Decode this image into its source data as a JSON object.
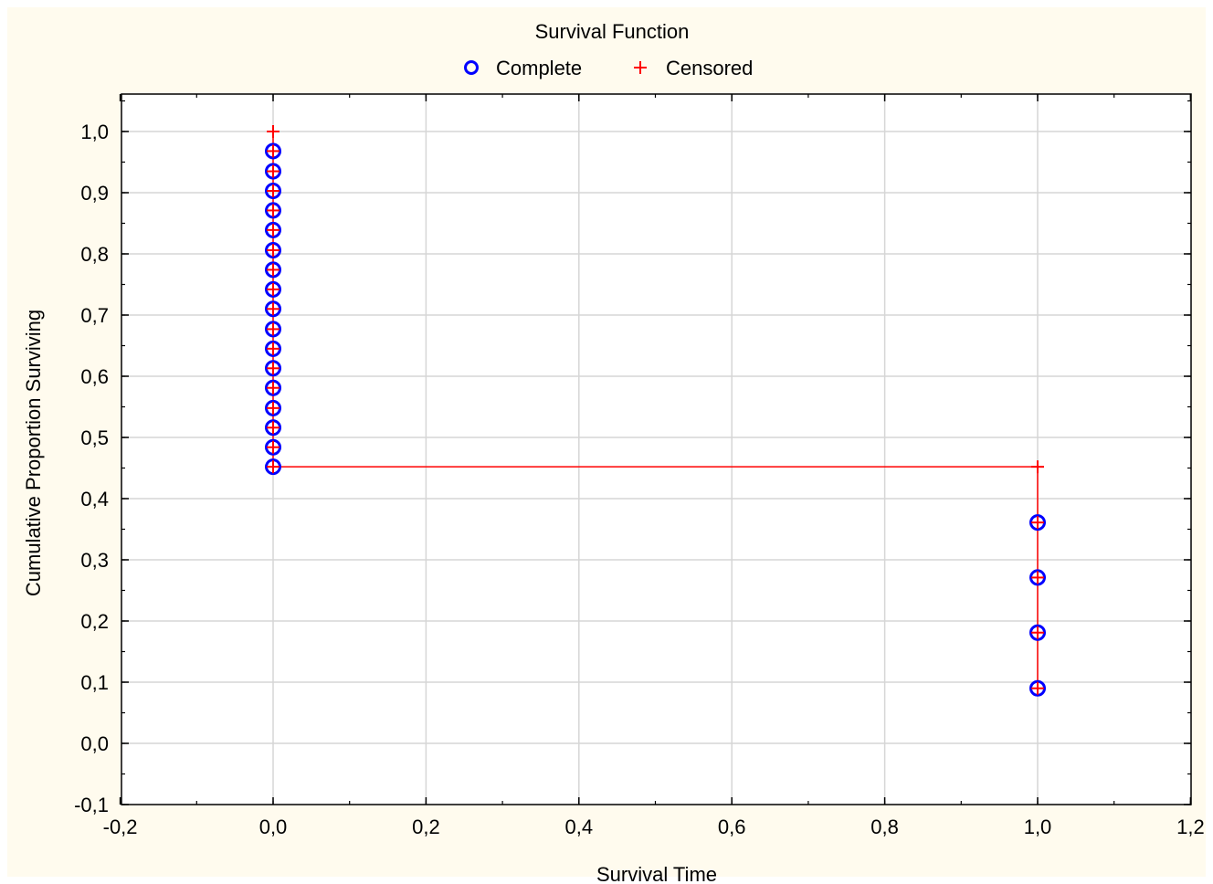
{
  "chart_data": {
    "type": "scatter",
    "title": "Survival Function",
    "xlabel": "Survival Time",
    "ylabel": "Cumulative Proportion Surviving",
    "xlim": [
      -0.2,
      1.2
    ],
    "ylim": [
      -0.1,
      1.05
    ],
    "x_ticks": [
      "-0,2",
      "0,0",
      "0,2",
      "0,4",
      "0,6",
      "0,8",
      "1,0",
      "1,2"
    ],
    "x_tick_values": [
      -0.2,
      0.0,
      0.2,
      0.4,
      0.6,
      0.8,
      1.0,
      1.2
    ],
    "y_ticks": [
      "-0,1",
      "0,0",
      "0,1",
      "0,2",
      "0,3",
      "0,4",
      "0,5",
      "0,6",
      "0,7",
      "0,8",
      "0,9",
      "1,0"
    ],
    "y_tick_values": [
      -0.1,
      0.0,
      0.1,
      0.2,
      0.3,
      0.4,
      0.5,
      0.6,
      0.7,
      0.8,
      0.9,
      1.0
    ],
    "grid": true,
    "legend_position": "top-center",
    "series": [
      {
        "name": "Complete",
        "marker": "circle",
        "color": "#0000ff",
        "points": [
          [
            0.0,
            0.968
          ],
          [
            0.0,
            0.935
          ],
          [
            0.0,
            0.903
          ],
          [
            0.0,
            0.871
          ],
          [
            0.0,
            0.839
          ],
          [
            0.0,
            0.806
          ],
          [
            0.0,
            0.774
          ],
          [
            0.0,
            0.742
          ],
          [
            0.0,
            0.71
          ],
          [
            0.0,
            0.677
          ],
          [
            0.0,
            0.645
          ],
          [
            0.0,
            0.613
          ],
          [
            0.0,
            0.581
          ],
          [
            0.0,
            0.548
          ],
          [
            0.0,
            0.516
          ],
          [
            0.0,
            0.484
          ],
          [
            0.0,
            0.452
          ],
          [
            1.0,
            0.361
          ],
          [
            1.0,
            0.271
          ],
          [
            1.0,
            0.181
          ],
          [
            1.0,
            0.09
          ]
        ]
      },
      {
        "name": "Censored",
        "marker": "plus",
        "color": "#ff0000",
        "points": [
          [
            0.0,
            1.0
          ],
          [
            0.0,
            0.968
          ],
          [
            0.0,
            0.935
          ],
          [
            0.0,
            0.903
          ],
          [
            0.0,
            0.871
          ],
          [
            0.0,
            0.839
          ],
          [
            0.0,
            0.806
          ],
          [
            0.0,
            0.774
          ],
          [
            0.0,
            0.742
          ],
          [
            0.0,
            0.71
          ],
          [
            0.0,
            0.677
          ],
          [
            0.0,
            0.645
          ],
          [
            0.0,
            0.613
          ],
          [
            0.0,
            0.581
          ],
          [
            0.0,
            0.548
          ],
          [
            0.0,
            0.516
          ],
          [
            0.0,
            0.484
          ],
          [
            0.0,
            0.452
          ],
          [
            1.0,
            0.452
          ],
          [
            1.0,
            0.361
          ],
          [
            1.0,
            0.271
          ],
          [
            1.0,
            0.181
          ],
          [
            1.0,
            0.09
          ]
        ]
      }
    ],
    "survival_line": {
      "color": "#ff0000",
      "points": [
        [
          0.0,
          1.0
        ],
        [
          0.0,
          0.452
        ],
        [
          1.0,
          0.452
        ],
        [
          1.0,
          0.09
        ]
      ]
    }
  }
}
